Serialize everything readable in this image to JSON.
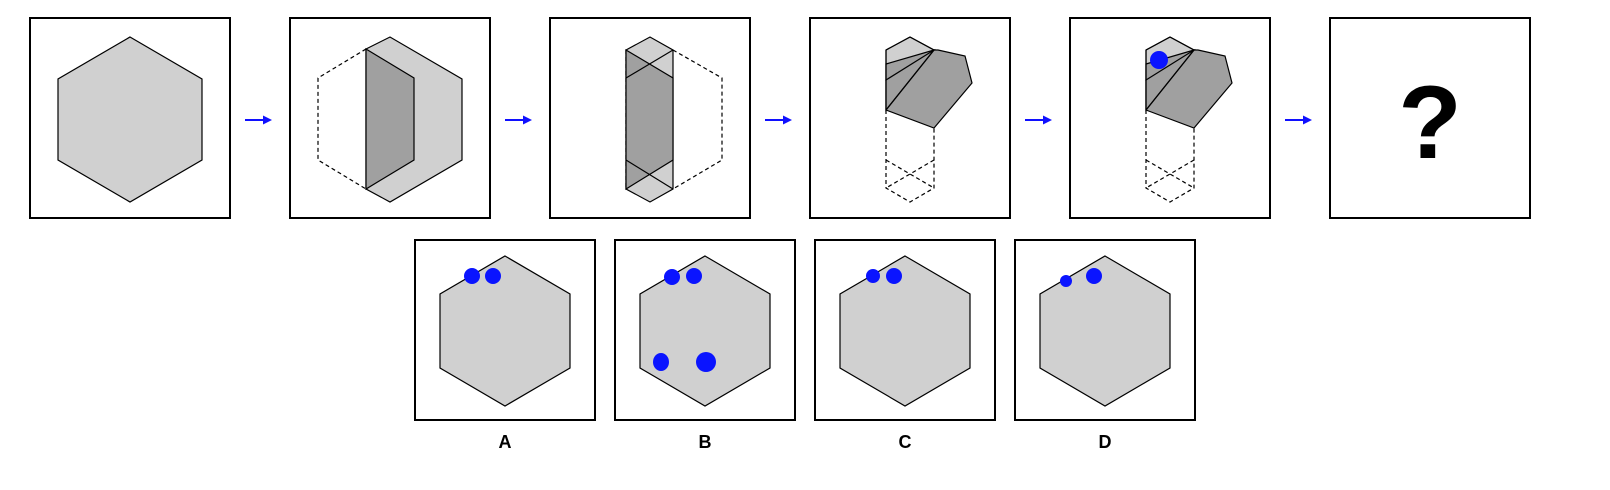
{
  "question_mark": "?",
  "options": [
    {
      "label": "A"
    },
    {
      "label": "B"
    },
    {
      "label": "C"
    },
    {
      "label": "D"
    }
  ],
  "colors": {
    "paper": "#d0d0d0",
    "folded_face": "#a0a0a0",
    "punch_hole": "#0a14ff",
    "arrow": "#1010ff"
  }
}
